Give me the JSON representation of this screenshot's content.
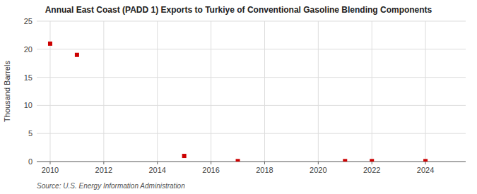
{
  "chart_data": {
    "type": "scatter",
    "title": "Annual East Coast (PADD 1) Exports to Turkiye of Conventional Gasoline Blending Components",
    "ylabel": "Thousand Barrels",
    "source": "Source: U.S. Energy Information Administration",
    "x": [
      2010,
      2011,
      2015,
      2017,
      2021,
      2022,
      2024
    ],
    "values": [
      21,
      19,
      1,
      0.08,
      0.08,
      0.08,
      0.08
    ],
    "color": "#cc0000",
    "marker": "square",
    "xlim": [
      2009.5,
      2025.5
    ],
    "ylim": [
      0,
      25
    ],
    "xticks": [
      2010,
      2012,
      2014,
      2016,
      2018,
      2020,
      2022,
      2024
    ],
    "yticks": [
      0,
      5,
      10,
      15,
      20,
      25
    ],
    "grid": true
  }
}
